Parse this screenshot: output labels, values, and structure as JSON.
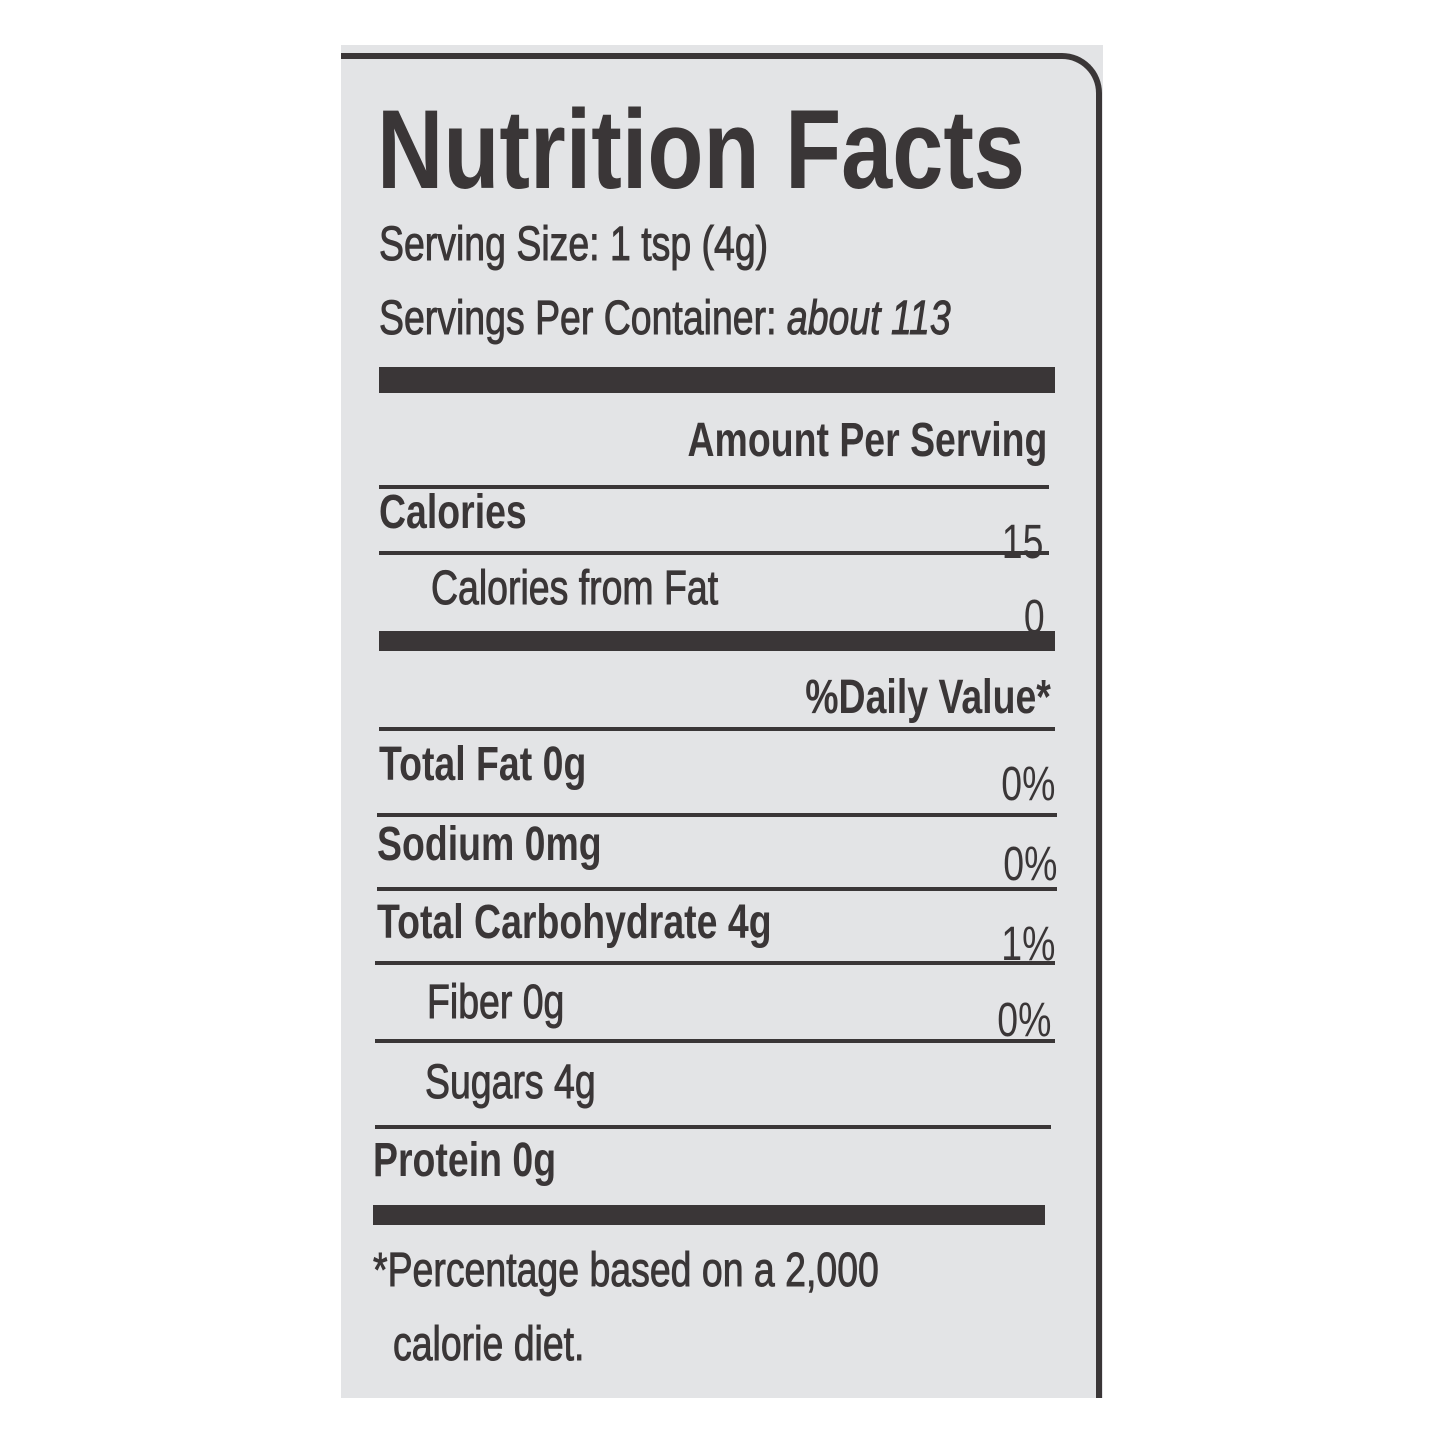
{
  "title": "Nutrition Facts",
  "serving_size": "Serving Size: 1 tsp (4g)",
  "servings_per_container_label": "Servings Per Container:",
  "servings_per_container_value": "about 113",
  "amount_per_serving": "Amount Per Serving",
  "calories": {
    "label": "Calories",
    "value": "15"
  },
  "calories_from_fat": {
    "label": "Calories from Fat",
    "value": "0"
  },
  "daily_value_header": "%Daily Value*",
  "nutrients": [
    {
      "label": "Total Fat 0g",
      "dv": "0%"
    },
    {
      "label": "Sodium 0mg",
      "dv": "0%"
    },
    {
      "label": "Total Carbohydrate 4g",
      "dv": "1%"
    },
    {
      "label": "Fiber 0g",
      "dv": "0%"
    },
    {
      "label": "Sugars 4g",
      "dv": ""
    },
    {
      "label": "Protein 0g",
      "dv": ""
    }
  ],
  "footnote_line1": "*Percentage based on a 2,000",
  "footnote_line2": "calorie diet.",
  "colors": {
    "ink": "#3a3637",
    "background": "#e3e4e6"
  }
}
